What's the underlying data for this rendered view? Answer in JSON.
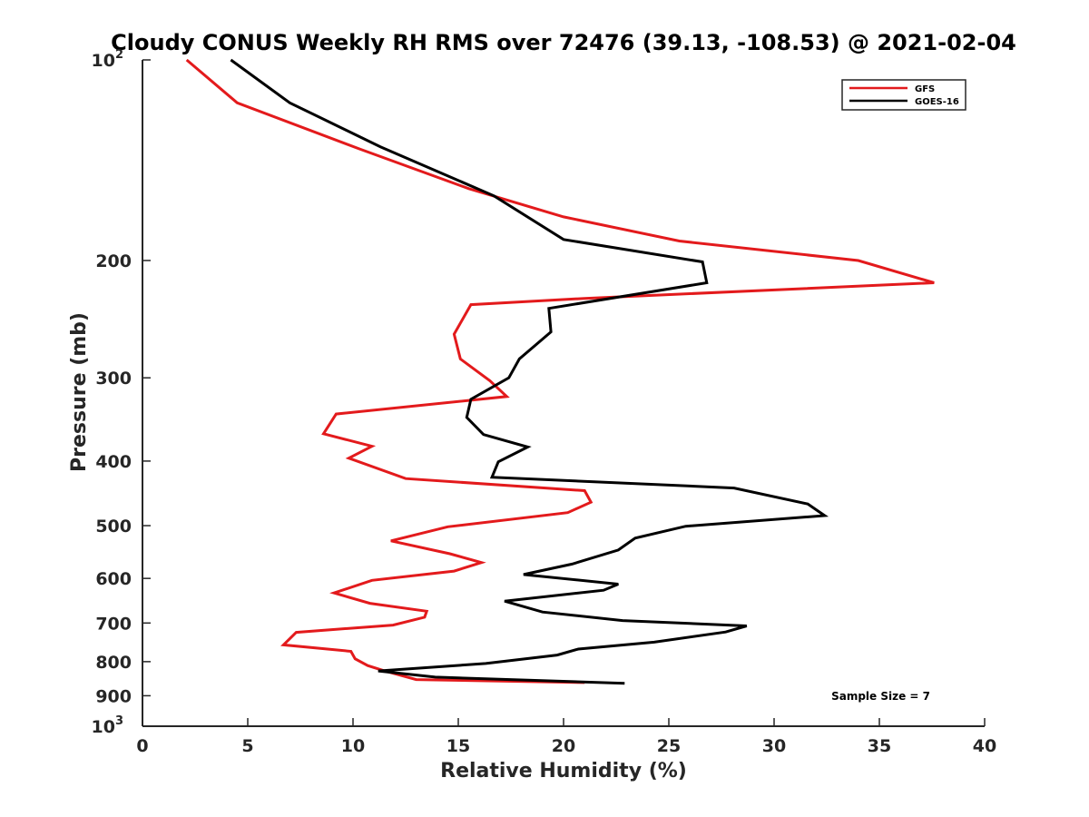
{
  "chart_data": {
    "type": "line",
    "title": "Cloudy CONUS Weekly RH RMS over 72476 (39.13, -108.53) @ 2021-02-04",
    "xlabel": "Relative Humidity (%)",
    "ylabel": "Pressure (mb)",
    "xlim": [
      0,
      40
    ],
    "ylim": [
      100,
      1000
    ],
    "y_scale": "log",
    "y_reversed": true,
    "grid": false,
    "legend_position": "top-right",
    "x_ticks": [
      0,
      5,
      10,
      15,
      20,
      25,
      30,
      35,
      40
    ],
    "y_ticks": [
      {
        "value": 100,
        "label": "10",
        "sup": "2"
      },
      {
        "value": 200,
        "label": "200"
      },
      {
        "value": 300,
        "label": "300"
      },
      {
        "value": 400,
        "label": "400"
      },
      {
        "value": 500,
        "label": "500"
      },
      {
        "value": 600,
        "label": "600"
      },
      {
        "value": 700,
        "label": "700"
      },
      {
        "value": 800,
        "label": "800"
      },
      {
        "value": 900,
        "label": "900"
      },
      {
        "value": 1000,
        "label": "10",
        "sup": "3"
      }
    ],
    "annotation": "Sample Size = 7",
    "series": [
      {
        "name": "GFS",
        "color": "#e31a1c",
        "points": [
          {
            "x": 2.1,
            "y": 100
          },
          {
            "x": 4.5,
            "y": 116
          },
          {
            "x": 10.3,
            "y": 136
          },
          {
            "x": 15.5,
            "y": 156
          },
          {
            "x": 20.0,
            "y": 172
          },
          {
            "x": 25.5,
            "y": 187
          },
          {
            "x": 34.0,
            "y": 200
          },
          {
            "x": 37.6,
            "y": 216
          },
          {
            "x": 21.0,
            "y": 228
          },
          {
            "x": 15.6,
            "y": 233
          },
          {
            "x": 14.8,
            "y": 258
          },
          {
            "x": 15.1,
            "y": 281
          },
          {
            "x": 16.5,
            "y": 303
          },
          {
            "x": 17.3,
            "y": 320
          },
          {
            "x": 9.2,
            "y": 340
          },
          {
            "x": 8.6,
            "y": 364
          },
          {
            "x": 10.9,
            "y": 380
          },
          {
            "x": 9.8,
            "y": 396
          },
          {
            "x": 12.5,
            "y": 425
          },
          {
            "x": 21.0,
            "y": 443
          },
          {
            "x": 21.3,
            "y": 461
          },
          {
            "x": 20.2,
            "y": 478
          },
          {
            "x": 14.5,
            "y": 502
          },
          {
            "x": 11.8,
            "y": 527
          },
          {
            "x": 14.6,
            "y": 551
          },
          {
            "x": 16.1,
            "y": 568
          },
          {
            "x": 14.8,
            "y": 585
          },
          {
            "x": 10.9,
            "y": 604
          },
          {
            "x": 9.1,
            "y": 631
          },
          {
            "x": 10.8,
            "y": 654
          },
          {
            "x": 13.5,
            "y": 672
          },
          {
            "x": 13.4,
            "y": 686
          },
          {
            "x": 11.9,
            "y": 705
          },
          {
            "x": 7.3,
            "y": 723
          },
          {
            "x": 6.7,
            "y": 755
          },
          {
            "x": 9.9,
            "y": 772
          },
          {
            "x": 10.1,
            "y": 792
          },
          {
            "x": 10.7,
            "y": 811
          },
          {
            "x": 11.5,
            "y": 826
          },
          {
            "x": 13.0,
            "y": 851
          },
          {
            "x": 21.0,
            "y": 860
          }
        ]
      },
      {
        "name": "GOES-16",
        "color": "#000000",
        "points": [
          {
            "x": 4.2,
            "y": 100
          },
          {
            "x": 7.0,
            "y": 116
          },
          {
            "x": 11.3,
            "y": 135
          },
          {
            "x": 16.7,
            "y": 160
          },
          {
            "x": 20.0,
            "y": 186
          },
          {
            "x": 26.6,
            "y": 201
          },
          {
            "x": 26.8,
            "y": 216
          },
          {
            "x": 19.3,
            "y": 236
          },
          {
            "x": 19.4,
            "y": 256
          },
          {
            "x": 17.9,
            "y": 281
          },
          {
            "x": 17.4,
            "y": 300
          },
          {
            "x": 15.6,
            "y": 323
          },
          {
            "x": 15.4,
            "y": 344
          },
          {
            "x": 16.2,
            "y": 365
          },
          {
            "x": 18.3,
            "y": 381
          },
          {
            "x": 16.9,
            "y": 401
          },
          {
            "x": 16.6,
            "y": 423
          },
          {
            "x": 28.1,
            "y": 439
          },
          {
            "x": 31.6,
            "y": 464
          },
          {
            "x": 32.4,
            "y": 483
          },
          {
            "x": 25.8,
            "y": 501
          },
          {
            "x": 23.4,
            "y": 522
          },
          {
            "x": 22.6,
            "y": 544
          },
          {
            "x": 20.4,
            "y": 571
          },
          {
            "x": 18.1,
            "y": 592
          },
          {
            "x": 22.6,
            "y": 612
          },
          {
            "x": 21.9,
            "y": 625
          },
          {
            "x": 17.2,
            "y": 649
          },
          {
            "x": 19.0,
            "y": 674
          },
          {
            "x": 22.8,
            "y": 694
          },
          {
            "x": 28.7,
            "y": 707
          },
          {
            "x": 27.7,
            "y": 722
          },
          {
            "x": 24.3,
            "y": 748
          },
          {
            "x": 20.7,
            "y": 766
          },
          {
            "x": 19.7,
            "y": 782
          },
          {
            "x": 16.3,
            "y": 805
          },
          {
            "x": 11.2,
            "y": 826
          },
          {
            "x": 13.9,
            "y": 844
          },
          {
            "x": 22.9,
            "y": 862
          }
        ]
      }
    ]
  }
}
